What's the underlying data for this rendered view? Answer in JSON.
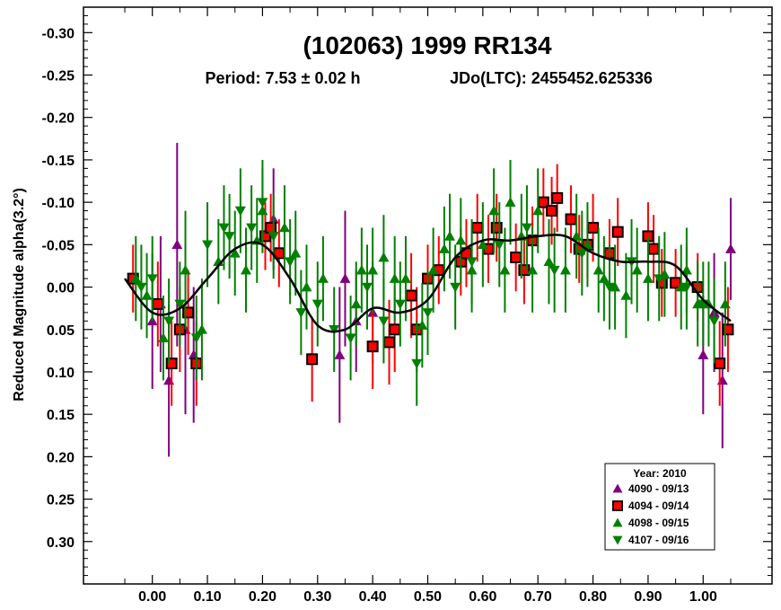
{
  "chart_data": {
    "type": "scatter",
    "title": "(102063) 1999 RR134",
    "subtitle_period": "Period: 7.53 ± 0.02 h",
    "subtitle_epoch": "JDo(LTC): 2455452.625336",
    "xlabel": "",
    "ylabel": "Reduced Magnitude alpha(3.2°)",
    "xlim": [
      -0.125,
      1.125
    ],
    "ylim": [
      -0.33,
      0.35
    ],
    "y_inverted": true,
    "x_ticks": [
      "0.00",
      "0.10",
      "0.20",
      "0.30",
      "0.40",
      "0.50",
      "0.60",
      "0.70",
      "0.80",
      "0.90",
      "1.00"
    ],
    "y_ticks": [
      "-0.30",
      "-0.25",
      "-0.20",
      "-0.15",
      "-0.10",
      "-0.05",
      "0.00",
      "0.05",
      "0.10",
      "0.15",
      "0.20",
      "0.25",
      "0.30"
    ],
    "legend_placement": "bottom-right",
    "legend_title": "Year: 2010",
    "fit_curve": {
      "x": [
        -0.05,
        0.0,
        0.05,
        0.1,
        0.15,
        0.2,
        0.25,
        0.3,
        0.35,
        0.4,
        0.45,
        0.5,
        0.55,
        0.6,
        0.65,
        0.7,
        0.75,
        0.8,
        0.85,
        0.9,
        0.95,
        1.0,
        1.05
      ],
      "y": [
        -0.01,
        0.03,
        0.025,
        -0.01,
        -0.045,
        -0.05,
        -0.01,
        0.045,
        0.05,
        0.025,
        0.03,
        0.015,
        -0.035,
        -0.055,
        -0.055,
        -0.06,
        -0.06,
        -0.04,
        -0.03,
        -0.03,
        -0.025,
        0.015,
        0.04
      ]
    },
    "series": [
      {
        "name": "4090 - 09/13",
        "marker": "triangle-up",
        "color": "#800080",
        "x": [
          0.0,
          0.015,
          0.03,
          0.045,
          0.06,
          0.075,
          0.22,
          0.34,
          0.35,
          0.37,
          0.4,
          1.0,
          1.02,
          1.035,
          1.05
        ],
        "y": [
          0.04,
          0.02,
          0.11,
          -0.05,
          0.05,
          0.08,
          -0.08,
          0.08,
          -0.01,
          0.04,
          0.03,
          0.08,
          0.03,
          0.11,
          -0.045
        ],
        "err": [
          0.08,
          0.08,
          0.09,
          0.12,
          0.1,
          0.08,
          0.06,
          0.08,
          0.08,
          0.06,
          0.06,
          0.07,
          0.07,
          0.08,
          0.06
        ]
      },
      {
        "name": "4094 - 09/14",
        "marker": "square",
        "color": "#ff0000",
        "x": [
          -0.035,
          0.01,
          0.035,
          0.05,
          0.065,
          0.08,
          0.205,
          0.215,
          0.23,
          0.29,
          0.4,
          0.43,
          0.44,
          0.47,
          0.48,
          0.5,
          0.52,
          0.56,
          0.57,
          0.59,
          0.61,
          0.625,
          0.66,
          0.675,
          0.69,
          0.71,
          0.725,
          0.735,
          0.76,
          0.775,
          0.79,
          0.8,
          0.83,
          0.845,
          0.9,
          0.91,
          0.925,
          0.95,
          0.99,
          1.03,
          1.045
        ],
        "y": [
          -0.01,
          0.02,
          0.09,
          0.05,
          0.03,
          0.09,
          -0.06,
          -0.07,
          -0.04,
          0.085,
          0.07,
          0.065,
          0.05,
          0.01,
          0.05,
          -0.01,
          -0.02,
          -0.03,
          -0.04,
          -0.07,
          -0.045,
          -0.07,
          -0.035,
          -0.02,
          -0.055,
          -0.1,
          -0.09,
          -0.105,
          -0.08,
          -0.045,
          -0.05,
          -0.07,
          -0.04,
          -0.065,
          -0.06,
          -0.045,
          -0.005,
          -0.005,
          0.0,
          0.09,
          0.05
        ],
        "err": [
          0.04,
          0.05,
          0.05,
          0.05,
          0.05,
          0.05,
          0.04,
          0.04,
          0.04,
          0.05,
          0.05,
          0.05,
          0.05,
          0.05,
          0.05,
          0.04,
          0.04,
          0.04,
          0.04,
          0.04,
          0.04,
          0.04,
          0.04,
          0.04,
          0.04,
          0.04,
          0.04,
          0.04,
          0.04,
          0.04,
          0.04,
          0.04,
          0.04,
          0.04,
          0.04,
          0.04,
          0.04,
          0.04,
          0.04,
          0.05,
          0.05
        ]
      },
      {
        "name": "4098 - 09/15",
        "marker": "triangle-up",
        "color": "#008000",
        "x": [
          -0.03,
          -0.01,
          0.02,
          0.06,
          0.09,
          0.12,
          0.15,
          0.17,
          0.19,
          0.2,
          0.24,
          0.26,
          0.28,
          0.31,
          0.37,
          0.38,
          0.4,
          0.42,
          0.44,
          0.46,
          0.49,
          0.51,
          0.53,
          0.54,
          0.56,
          0.58,
          0.6,
          0.62,
          0.64,
          0.65,
          0.67,
          0.69,
          0.7,
          0.72,
          0.75,
          0.77,
          0.79,
          0.81,
          0.82,
          0.84,
          0.86,
          0.88,
          0.9,
          0.93,
          0.96,
          0.97,
          0.99,
          1.01,
          1.04
        ],
        "y": [
          -0.01,
          0.01,
          0.06,
          -0.02,
          0.05,
          -0.03,
          -0.04,
          -0.02,
          -0.055,
          -0.09,
          -0.07,
          -0.04,
          0.0,
          -0.01,
          0.02,
          -0.02,
          -0.02,
          -0.035,
          -0.01,
          -0.01,
          0.045,
          -0.02,
          -0.045,
          -0.06,
          -0.055,
          -0.02,
          -0.05,
          -0.09,
          -0.02,
          -0.1,
          -0.06,
          -0.02,
          -0.09,
          -0.03,
          -0.02,
          -0.06,
          -0.05,
          -0.02,
          -0.01,
          0.0,
          0.01,
          -0.02,
          -0.01,
          -0.015,
          0.0,
          -0.02,
          0.02,
          0.02,
          0.02
        ],
        "err": [
          0.05,
          0.05,
          0.05,
          0.07,
          0.06,
          0.05,
          0.05,
          0.05,
          0.05,
          0.05,
          0.05,
          0.05,
          0.05,
          0.05,
          0.05,
          0.05,
          0.05,
          0.05,
          0.05,
          0.05,
          0.05,
          0.05,
          0.05,
          0.05,
          0.05,
          0.05,
          0.05,
          0.05,
          0.05,
          0.05,
          0.05,
          0.05,
          0.05,
          0.05,
          0.05,
          0.05,
          0.05,
          0.05,
          0.05,
          0.05,
          0.05,
          0.05,
          0.05,
          0.05,
          0.05,
          0.05,
          0.05,
          0.05,
          0.05
        ]
      },
      {
        "name": "4107 - 09/16",
        "marker": "triangle-down",
        "color": "#008000",
        "x": [
          -0.02,
          0.0,
          0.03,
          0.05,
          0.08,
          0.1,
          0.13,
          0.14,
          0.16,
          0.18,
          0.2,
          0.22,
          0.25,
          0.27,
          0.3,
          0.33,
          0.36,
          0.39,
          0.42,
          0.45,
          0.48,
          0.5,
          0.55,
          0.58,
          0.63,
          0.68,
          0.73,
          0.78,
          0.83,
          0.87,
          0.92,
          0.97,
          1.0,
          1.02
        ],
        "y": [
          0.0,
          -0.01,
          0.04,
          0.02,
          0.06,
          -0.05,
          -0.07,
          -0.06,
          -0.09,
          -0.07,
          -0.1,
          -0.06,
          -0.03,
          0.03,
          0.02,
          0.05,
          0.06,
          0.0,
          0.04,
          0.02,
          0.09,
          0.03,
          0.0,
          -0.03,
          -0.05,
          -0.07,
          -0.02,
          -0.04,
          0.0,
          -0.03,
          -0.01,
          0.0,
          0.02,
          0.04
        ],
        "err": [
          0.05,
          0.05,
          0.05,
          0.05,
          0.05,
          0.05,
          0.05,
          0.05,
          0.05,
          0.05,
          0.05,
          0.05,
          0.05,
          0.05,
          0.05,
          0.05,
          0.05,
          0.05,
          0.05,
          0.05,
          0.05,
          0.05,
          0.05,
          0.05,
          0.05,
          0.05,
          0.05,
          0.05,
          0.05,
          0.05,
          0.05,
          0.05,
          0.05,
          0.05
        ]
      }
    ]
  }
}
